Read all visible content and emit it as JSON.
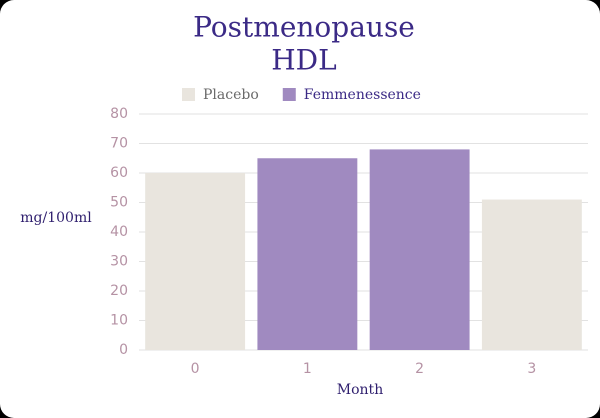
{
  "chart_data": {
    "type": "bar",
    "title": [
      "Postmenopause",
      "HDL"
    ],
    "categories": [
      "0",
      "1",
      "2",
      "3"
    ],
    "series": [
      {
        "name": "Placebo",
        "color": "#e9e5de",
        "values": [
          60,
          null,
          null,
          51
        ]
      },
      {
        "name": "Femmenessence",
        "color": "#a08ac0",
        "values": [
          null,
          65,
          68,
          null
        ]
      }
    ],
    "x_label": "Month",
    "y_label": "mg/100ml",
    "ylim": [
      0,
      80
    ],
    "yticks": [
      0,
      10,
      20,
      30,
      40,
      50,
      60,
      70,
      80
    ],
    "grid": true
  }
}
